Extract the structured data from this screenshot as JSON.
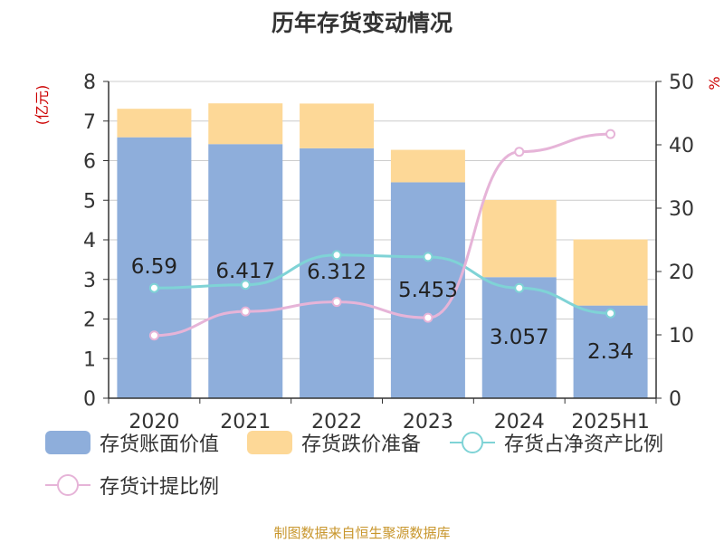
{
  "page": {
    "title": "历年存货变动情况",
    "footer": "制图数据来自恒生聚源数据库"
  },
  "chart_data": {
    "type": "bar",
    "stacked": true,
    "title": "历年存货变动情况",
    "categories": [
      "2020",
      "2021",
      "2022",
      "2023",
      "2024",
      "2025H1"
    ],
    "y_left": {
      "unit_label": "(亿元)",
      "ylim": [
        0,
        8
      ],
      "ticks": [
        "0",
        "1",
        "2",
        "3",
        "4",
        "5",
        "6",
        "7",
        "8"
      ]
    },
    "y_right": {
      "unit_label": "%",
      "ylim": [
        0,
        50
      ],
      "ticks": [
        "0",
        "10",
        "20",
        "30",
        "40",
        "50"
      ]
    },
    "grid": true,
    "legend_position": "bottom",
    "series": [
      {
        "name": "存货账面价值",
        "kind": "bar",
        "axis": "left",
        "color": "#8eaedb",
        "values": [
          6.59,
          6.417,
          6.312,
          5.453,
          3.057,
          2.34
        ],
        "labels": [
          "6.59",
          "6.417",
          "6.312",
          "5.453",
          "3.057",
          "2.34"
        ]
      },
      {
        "name": "存货跌价准备",
        "kind": "bar",
        "axis": "left",
        "color": "#fdd897",
        "values": [
          0.72,
          1.03,
          1.13,
          0.82,
          1.95,
          1.67
        ]
      },
      {
        "name": "存货占净资产比例",
        "kind": "line",
        "axis": "right",
        "color": "#7fd3d6",
        "values": [
          17.4,
          17.9,
          22.6,
          22.3,
          17.4,
          13.4
        ]
      },
      {
        "name": "存货计提比例",
        "kind": "line",
        "axis": "right",
        "color": "#e6b4d8",
        "values": [
          9.9,
          13.7,
          15.2,
          12.7,
          38.9,
          41.7
        ]
      }
    ]
  }
}
